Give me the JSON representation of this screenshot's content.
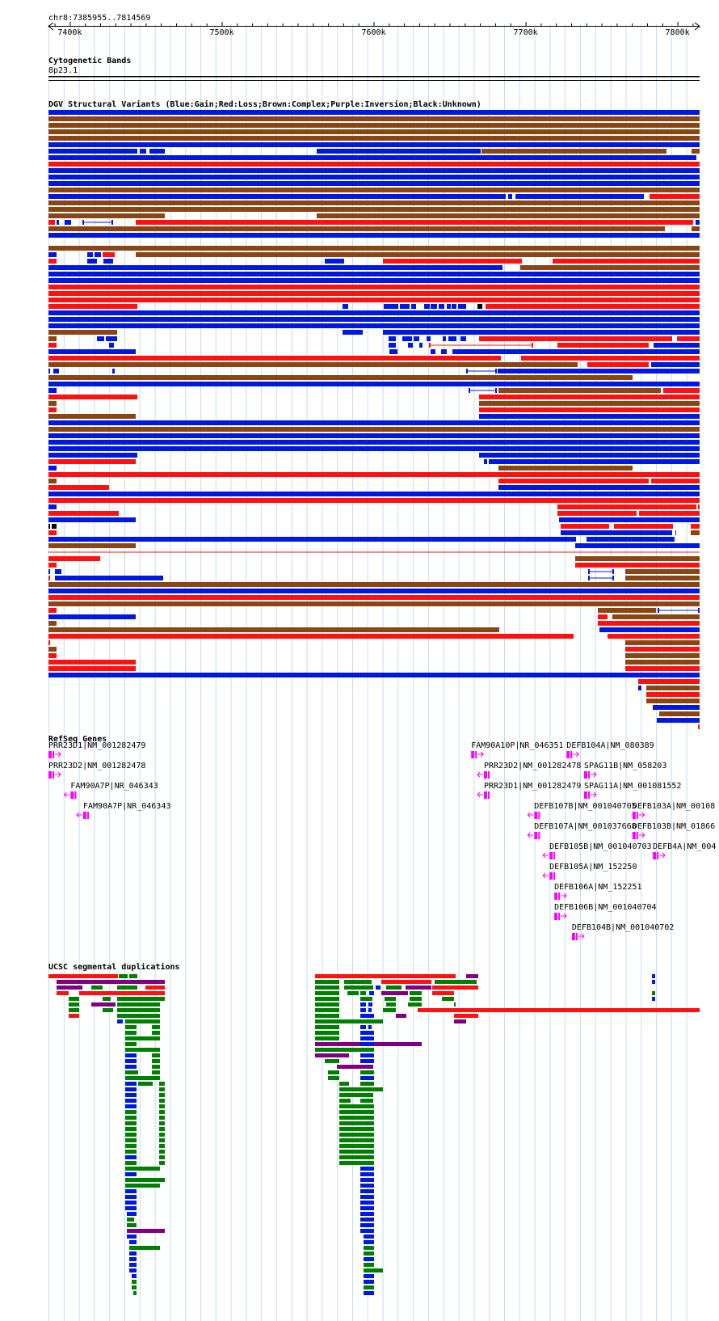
{
  "location": {
    "label": "chr8:7385955..7814569"
  },
  "ruler": {
    "ticks": [
      "7400k",
      "7500k",
      "7600k",
      "7700k",
      "7800k"
    ]
  },
  "cytoband": {
    "title": "Cytogenetic Bands",
    "band": "8p23.1"
  },
  "dgv": {
    "title": "DGV Structural Variants (Blue:Gain;Red:Loss;Brown:Complex;Purple:Inversion;Black:Unknown)",
    "colors": {
      "gain": "#0018e0",
      "loss": "#ff1010",
      "complex": "#8b4513",
      "inversion": "#800080",
      "unknown": "#000000"
    }
  },
  "refseq": {
    "title": "RefSeq Genes",
    "color": "#ff00ff",
    "genes": [
      {
        "label": "PRR23D1|NM_001282479",
        "start": 7385955,
        "strand": "+"
      },
      {
        "label": "PRR23D2|NM_001282478",
        "start": 7385955,
        "strand": "+"
      },
      {
        "label": "FAM90A7P|NR_046343",
        "start": 7400500,
        "strand": "-"
      },
      {
        "label": "FAM90A7P|NR_046343",
        "start": 7408800,
        "strand": "-"
      },
      {
        "label": "FAM90A10P|NR_046351",
        "start": 7664200,
        "strand": "+"
      },
      {
        "label": "DEFB104A|NM_080389",
        "start": 7727000,
        "strand": "+"
      },
      {
        "label": "PRR23D2|NM_001282478",
        "start": 7672600,
        "strand": "-"
      },
      {
        "label": "SPAG11B|NM_058203",
        "start": 7738500,
        "strand": "+"
      },
      {
        "label": "PRR23D1|NM_001282479",
        "start": 7672600,
        "strand": "-"
      },
      {
        "label": "SPAG11A|NM_001081552",
        "start": 7738500,
        "strand": "+"
      },
      {
        "label": "DEFB107B|NM_001040705",
        "start": 7705700,
        "strand": "-"
      },
      {
        "label": "DEFB103A|NM_00108",
        "start": 7770300,
        "strand": "+"
      },
      {
        "label": "DEFB107A|NM_001037668",
        "start": 7705700,
        "strand": "-"
      },
      {
        "label": "DEFB103B|NM_01866",
        "start": 7770300,
        "strand": "+"
      },
      {
        "label": "DEFB105B|NM_001040703",
        "start": 7715700,
        "strand": "-"
      },
      {
        "label": "DEFB4A|NM_004",
        "start": 7783800,
        "strand": "+"
      },
      {
        "label": "DEFB105A|NM_152250",
        "start": 7715700,
        "strand": "-"
      },
      {
        "label": "DEFB106A|NM_152251",
        "start": 7718900,
        "strand": "+"
      },
      {
        "label": "DEFB106B|NM_001040704",
        "start": 7718900,
        "strand": "+"
      },
      {
        "label": "DEFB104B|NM_001040702",
        "start": 7730500,
        "strand": "+"
      }
    ]
  },
  "segdup": {
    "title": "UCSC segmental duplications",
    "colors": {
      "red": "#ff1010",
      "green": "#008000",
      "purple": "#800080",
      "blue": "#0018e0"
    }
  }
}
